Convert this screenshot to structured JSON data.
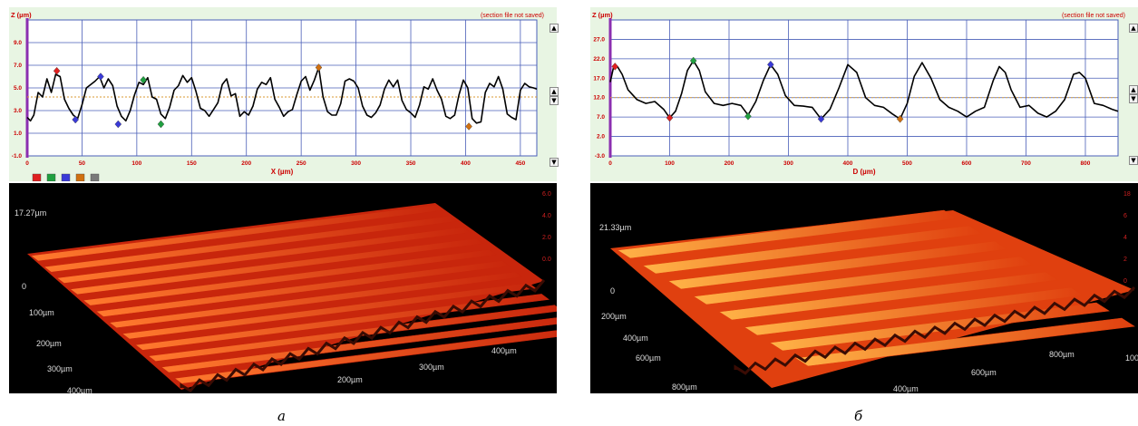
{
  "colors": {
    "profile_bg": "#e8f5e3",
    "plot_bg": "#ffffff",
    "grid": "#4a5fb8",
    "profile_line": "#000000",
    "axis_text": "#cc0000",
    "axis_left": "#8b2fb0",
    "mean_line": "#d89a30",
    "surface_light": "#ff7a2e",
    "surface_dark": "#c8260c",
    "surface_b_light": "#ffb347",
    "surface_b_dark": "#e0400f"
  },
  "panels": [
    {
      "letter": "а",
      "profile": {
        "ylabel": "Z (µm)",
        "xlabel": "X (µm)",
        "status": "(section file not saved)",
        "height_label": "17.27µm",
        "axis_3d_labels": [
          "0",
          "100µm",
          "200µm",
          "300µm",
          "400µm"
        ],
        "axis_3d_front_labels": [
          "200µm",
          "300µm",
          "400µm"
        ],
        "color_scale": [
          "6.0",
          "4.0",
          "2.0",
          "0.0"
        ]
      }
    },
    {
      "letter": "б",
      "profile": {
        "ylabel": "Z (µm)",
        "xlabel": "D (µm)",
        "status": "(section file not saved)",
        "height_label": "21.33µm",
        "axis_3d_labels": [
          "0",
          "200µm",
          "400µm",
          "600µm",
          "800µm"
        ],
        "axis_3d_front_labels": [
          "400µm",
          "600µm",
          "800µm",
          "100"
        ],
        "color_scale": [
          "18",
          "6",
          "4",
          "2",
          "0"
        ]
      }
    }
  ],
  "chart_data": [
    {
      "type": "line",
      "title": "",
      "ylabel": "Z (µm)",
      "xlabel": "X (µm)",
      "xlim": [
        0,
        465
      ],
      "ylim": [
        -1.0,
        11.0
      ],
      "xticks": [
        0,
        50,
        100,
        150,
        200,
        250,
        300,
        350,
        400,
        450
      ],
      "yticks": [
        -1.0,
        1.0,
        3.0,
        5.0,
        7.0,
        9.0
      ],
      "mean_line": 4.2,
      "grid": true,
      "legend": "none",
      "series": [
        {
          "x": [
            0,
            3,
            6,
            10,
            14,
            18,
            22,
            26,
            30,
            34,
            38,
            42,
            46,
            50,
            54,
            58,
            62,
            66,
            70,
            74,
            78,
            82,
            86,
            90,
            94,
            98,
            102,
            106,
            110,
            114,
            118,
            122,
            126,
            130,
            134,
            138,
            142,
            146,
            150,
            154,
            158,
            162,
            166,
            170,
            174,
            178,
            182,
            186,
            190,
            194,
            198,
            202,
            206,
            210,
            214,
            218,
            222,
            226,
            230,
            234,
            238,
            242,
            246,
            250,
            254,
            258,
            262,
            266,
            270,
            274,
            278,
            282,
            286,
            290,
            294,
            298,
            302,
            306,
            310,
            314,
            318,
            322,
            326,
            330,
            334,
            338,
            342,
            346,
            350,
            354,
            358,
            362,
            366,
            370,
            374,
            378,
            382,
            386,
            390,
            394,
            398,
            402,
            406,
            410,
            414,
            418,
            422,
            426,
            430,
            434,
            438,
            442,
            446,
            450,
            454,
            458,
            462,
            465
          ],
          "values": [
            2.4,
            2.1,
            2.6,
            4.6,
            4.2,
            5.8,
            4.6,
            6.2,
            6.0,
            4.0,
            3.2,
            2.6,
            2.3,
            3.5,
            5.0,
            5.3,
            5.6,
            6.0,
            5.0,
            5.8,
            5.2,
            3.4,
            2.5,
            2.1,
            3.0,
            4.4,
            5.5,
            5.3,
            5.9,
            4.2,
            4.0,
            2.7,
            2.3,
            3.3,
            4.8,
            5.2,
            6.1,
            5.5,
            5.9,
            4.7,
            3.2,
            3.0,
            2.5,
            3.1,
            3.7,
            5.3,
            5.8,
            4.3,
            4.5,
            2.5,
            2.9,
            2.6,
            3.4,
            4.9,
            5.5,
            5.3,
            5.9,
            4.0,
            3.3,
            2.5,
            2.9,
            3.1,
            4.4,
            5.6,
            6.0,
            4.8,
            5.7,
            6.8,
            4.2,
            2.9,
            2.6,
            2.6,
            3.6,
            5.6,
            5.8,
            5.6,
            5.0,
            3.4,
            2.6,
            2.4,
            2.8,
            3.5,
            4.9,
            5.7,
            5.1,
            5.7,
            3.9,
            3.1,
            2.8,
            2.4,
            3.5,
            5.1,
            4.9,
            5.8,
            4.8,
            4.0,
            2.5,
            2.3,
            2.6,
            4.4,
            5.7,
            5.0,
            2.3,
            1.9,
            2.0,
            4.6,
            5.4,
            5.1,
            6.0,
            4.9,
            2.7,
            2.4,
            2.2,
            4.8,
            5.4,
            5.1,
            5.0,
            4.9
          ]
        }
      ],
      "markers": [
        {
          "x": 27,
          "y": 6.5,
          "color": "#e02020"
        },
        {
          "x": 44,
          "y": 2.2,
          "color": "#3a3ad8"
        },
        {
          "x": 67,
          "y": 6.0,
          "color": "#3a3ad8"
        },
        {
          "x": 83,
          "y": 1.8,
          "color": "#3a3ad8"
        },
        {
          "x": 106,
          "y": 5.7,
          "color": "#20a040"
        },
        {
          "x": 122,
          "y": 1.8,
          "color": "#20a040"
        },
        {
          "x": 266,
          "y": 6.8,
          "color": "#d07010"
        },
        {
          "x": 403,
          "y": 1.6,
          "color": "#d07010"
        }
      ]
    },
    {
      "type": "line",
      "title": "",
      "ylabel": "Z (µm)",
      "xlabel": "D (µm)",
      "xlim": [
        0,
        855
      ],
      "ylim": [
        -3.0,
        32.0
      ],
      "xticks": [
        0,
        100,
        200,
        300,
        400,
        500,
        600,
        700,
        800
      ],
      "yticks": [
        -3.0,
        2.0,
        7.0,
        12.0,
        17.0,
        22.0,
        27.0
      ],
      "mean_line": 12.0,
      "grid": true,
      "legend": "none",
      "series": [
        {
          "x": [
            0,
            5,
            12,
            20,
            30,
            45,
            60,
            75,
            90,
            100,
            110,
            120,
            130,
            140,
            150,
            160,
            175,
            190,
            205,
            220,
            232,
            245,
            258,
            270,
            282,
            295,
            310,
            325,
            340,
            355,
            370,
            385,
            400,
            415,
            430,
            445,
            460,
            475,
            488,
            500,
            512,
            525,
            540,
            555,
            570,
            585,
            600,
            615,
            630,
            645,
            655,
            665,
            675,
            690,
            705,
            720,
            735,
            750,
            765,
            780,
            790,
            800,
            815,
            830,
            845,
            855
          ],
          "values": [
            16.0,
            19.5,
            20.0,
            18.0,
            14.0,
            11.5,
            10.5,
            11.0,
            9.0,
            6.8,
            8.5,
            13.0,
            19.0,
            21.5,
            19.0,
            13.5,
            10.5,
            10.0,
            10.5,
            10.0,
            7.5,
            11.0,
            16.5,
            20.5,
            18.0,
            12.5,
            10.0,
            9.8,
            9.5,
            6.5,
            9.0,
            14.5,
            20.5,
            18.5,
            12.0,
            10.0,
            9.5,
            7.8,
            6.5,
            10.5,
            17.5,
            21.0,
            17.0,
            11.5,
            9.5,
            8.5,
            7.0,
            8.5,
            9.5,
            16.5,
            20.0,
            18.5,
            14.0,
            9.5,
            10.0,
            8.0,
            7.0,
            8.5,
            11.5,
            18.0,
            18.5,
            17.0,
            10.5,
            10.0,
            9.0,
            8.5
          ]
        }
      ],
      "markers": [
        {
          "x": 8,
          "y": 20.0,
          "color": "#e02020"
        },
        {
          "x": 100,
          "y": 6.8,
          "color": "#e02020"
        },
        {
          "x": 140,
          "y": 21.5,
          "color": "#20a040"
        },
        {
          "x": 232,
          "y": 7.2,
          "color": "#20a040"
        },
        {
          "x": 270,
          "y": 20.5,
          "color": "#3a3ad8"
        },
        {
          "x": 355,
          "y": 6.5,
          "color": "#3a3ad8"
        },
        {
          "x": 488,
          "y": 6.5,
          "color": "#d07010"
        }
      ]
    }
  ]
}
